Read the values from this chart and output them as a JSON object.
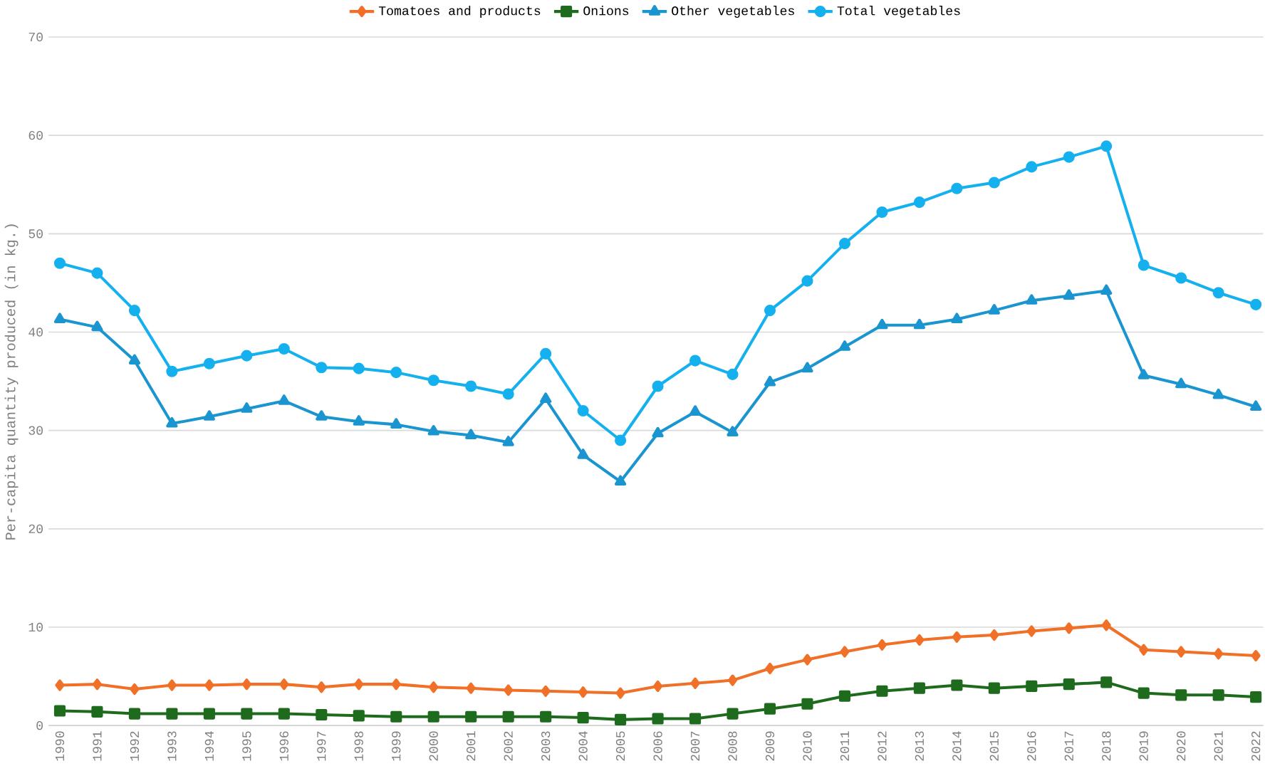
{
  "chart_data": {
    "type": "line",
    "ylabel": "Per-capita quantity produced (in kg.)",
    "categories": [
      "1990",
      "1991",
      "1992",
      "1993",
      "1994",
      "1995",
      "1996",
      "1997",
      "1998",
      "1999",
      "2000",
      "2001",
      "2002",
      "2003",
      "2004",
      "2005",
      "2006",
      "2007",
      "2008",
      "2009",
      "2010",
      "2011",
      "2012",
      "2013",
      "2014",
      "2015",
      "2016",
      "2017",
      "2018",
      "2019",
      "2020",
      "2021",
      "2022"
    ],
    "series": [
      {
        "name": "Tomatoes and products",
        "color": "#f07028",
        "marker": "diamond",
        "values": [
          4.1,
          4.2,
          3.7,
          4.1,
          4.1,
          4.2,
          4.2,
          3.9,
          4.2,
          4.2,
          3.9,
          3.8,
          3.6,
          3.5,
          3.4,
          3.3,
          4.0,
          4.3,
          4.6,
          5.8,
          6.7,
          7.5,
          8.2,
          8.7,
          9.0,
          9.2,
          9.6,
          9.9,
          10.2,
          7.7,
          7.5,
          7.3,
          7.1
        ]
      },
      {
        "name": "Onions",
        "color": "#1e6b1e",
        "marker": "square",
        "values": [
          1.5,
          1.4,
          1.2,
          1.2,
          1.2,
          1.2,
          1.2,
          1.1,
          1.0,
          0.9,
          0.9,
          0.9,
          0.9,
          0.9,
          0.8,
          0.6,
          0.7,
          0.7,
          1.2,
          1.7,
          2.2,
          3.0,
          3.5,
          3.8,
          4.1,
          3.8,
          4.0,
          4.2,
          4.4,
          3.3,
          3.1,
          3.1,
          2.9
        ]
      },
      {
        "name": "Other vegetables",
        "color": "#1a95d0",
        "marker": "triangle",
        "values": [
          41.3,
          40.5,
          37.1,
          30.7,
          31.4,
          32.2,
          33.0,
          31.4,
          30.9,
          30.6,
          29.9,
          29.5,
          28.8,
          33.2,
          27.5,
          24.8,
          29.7,
          31.9,
          29.8,
          34.9,
          36.3,
          38.5,
          40.7,
          40.7,
          41.3,
          42.2,
          43.2,
          43.7,
          44.2,
          35.6,
          34.7,
          33.6,
          32.4
        ]
      },
      {
        "name": "Total vegetables",
        "color": "#15b0ee",
        "marker": "circle",
        "values": [
          47.0,
          46.0,
          42.2,
          36.0,
          36.8,
          37.6,
          38.3,
          36.4,
          36.3,
          35.9,
          35.1,
          34.5,
          33.7,
          37.8,
          32.0,
          29.0,
          34.5,
          37.1,
          35.7,
          42.2,
          45.2,
          49.0,
          52.2,
          53.2,
          54.6,
          55.2,
          56.8,
          57.8,
          58.9,
          46.8,
          45.5,
          44.0,
          42.8
        ]
      }
    ],
    "ylim": [
      0,
      70
    ],
    "yticks": [
      0,
      10,
      20,
      30,
      40,
      50,
      60,
      70
    ],
    "grid": "y",
    "legend": "top"
  }
}
